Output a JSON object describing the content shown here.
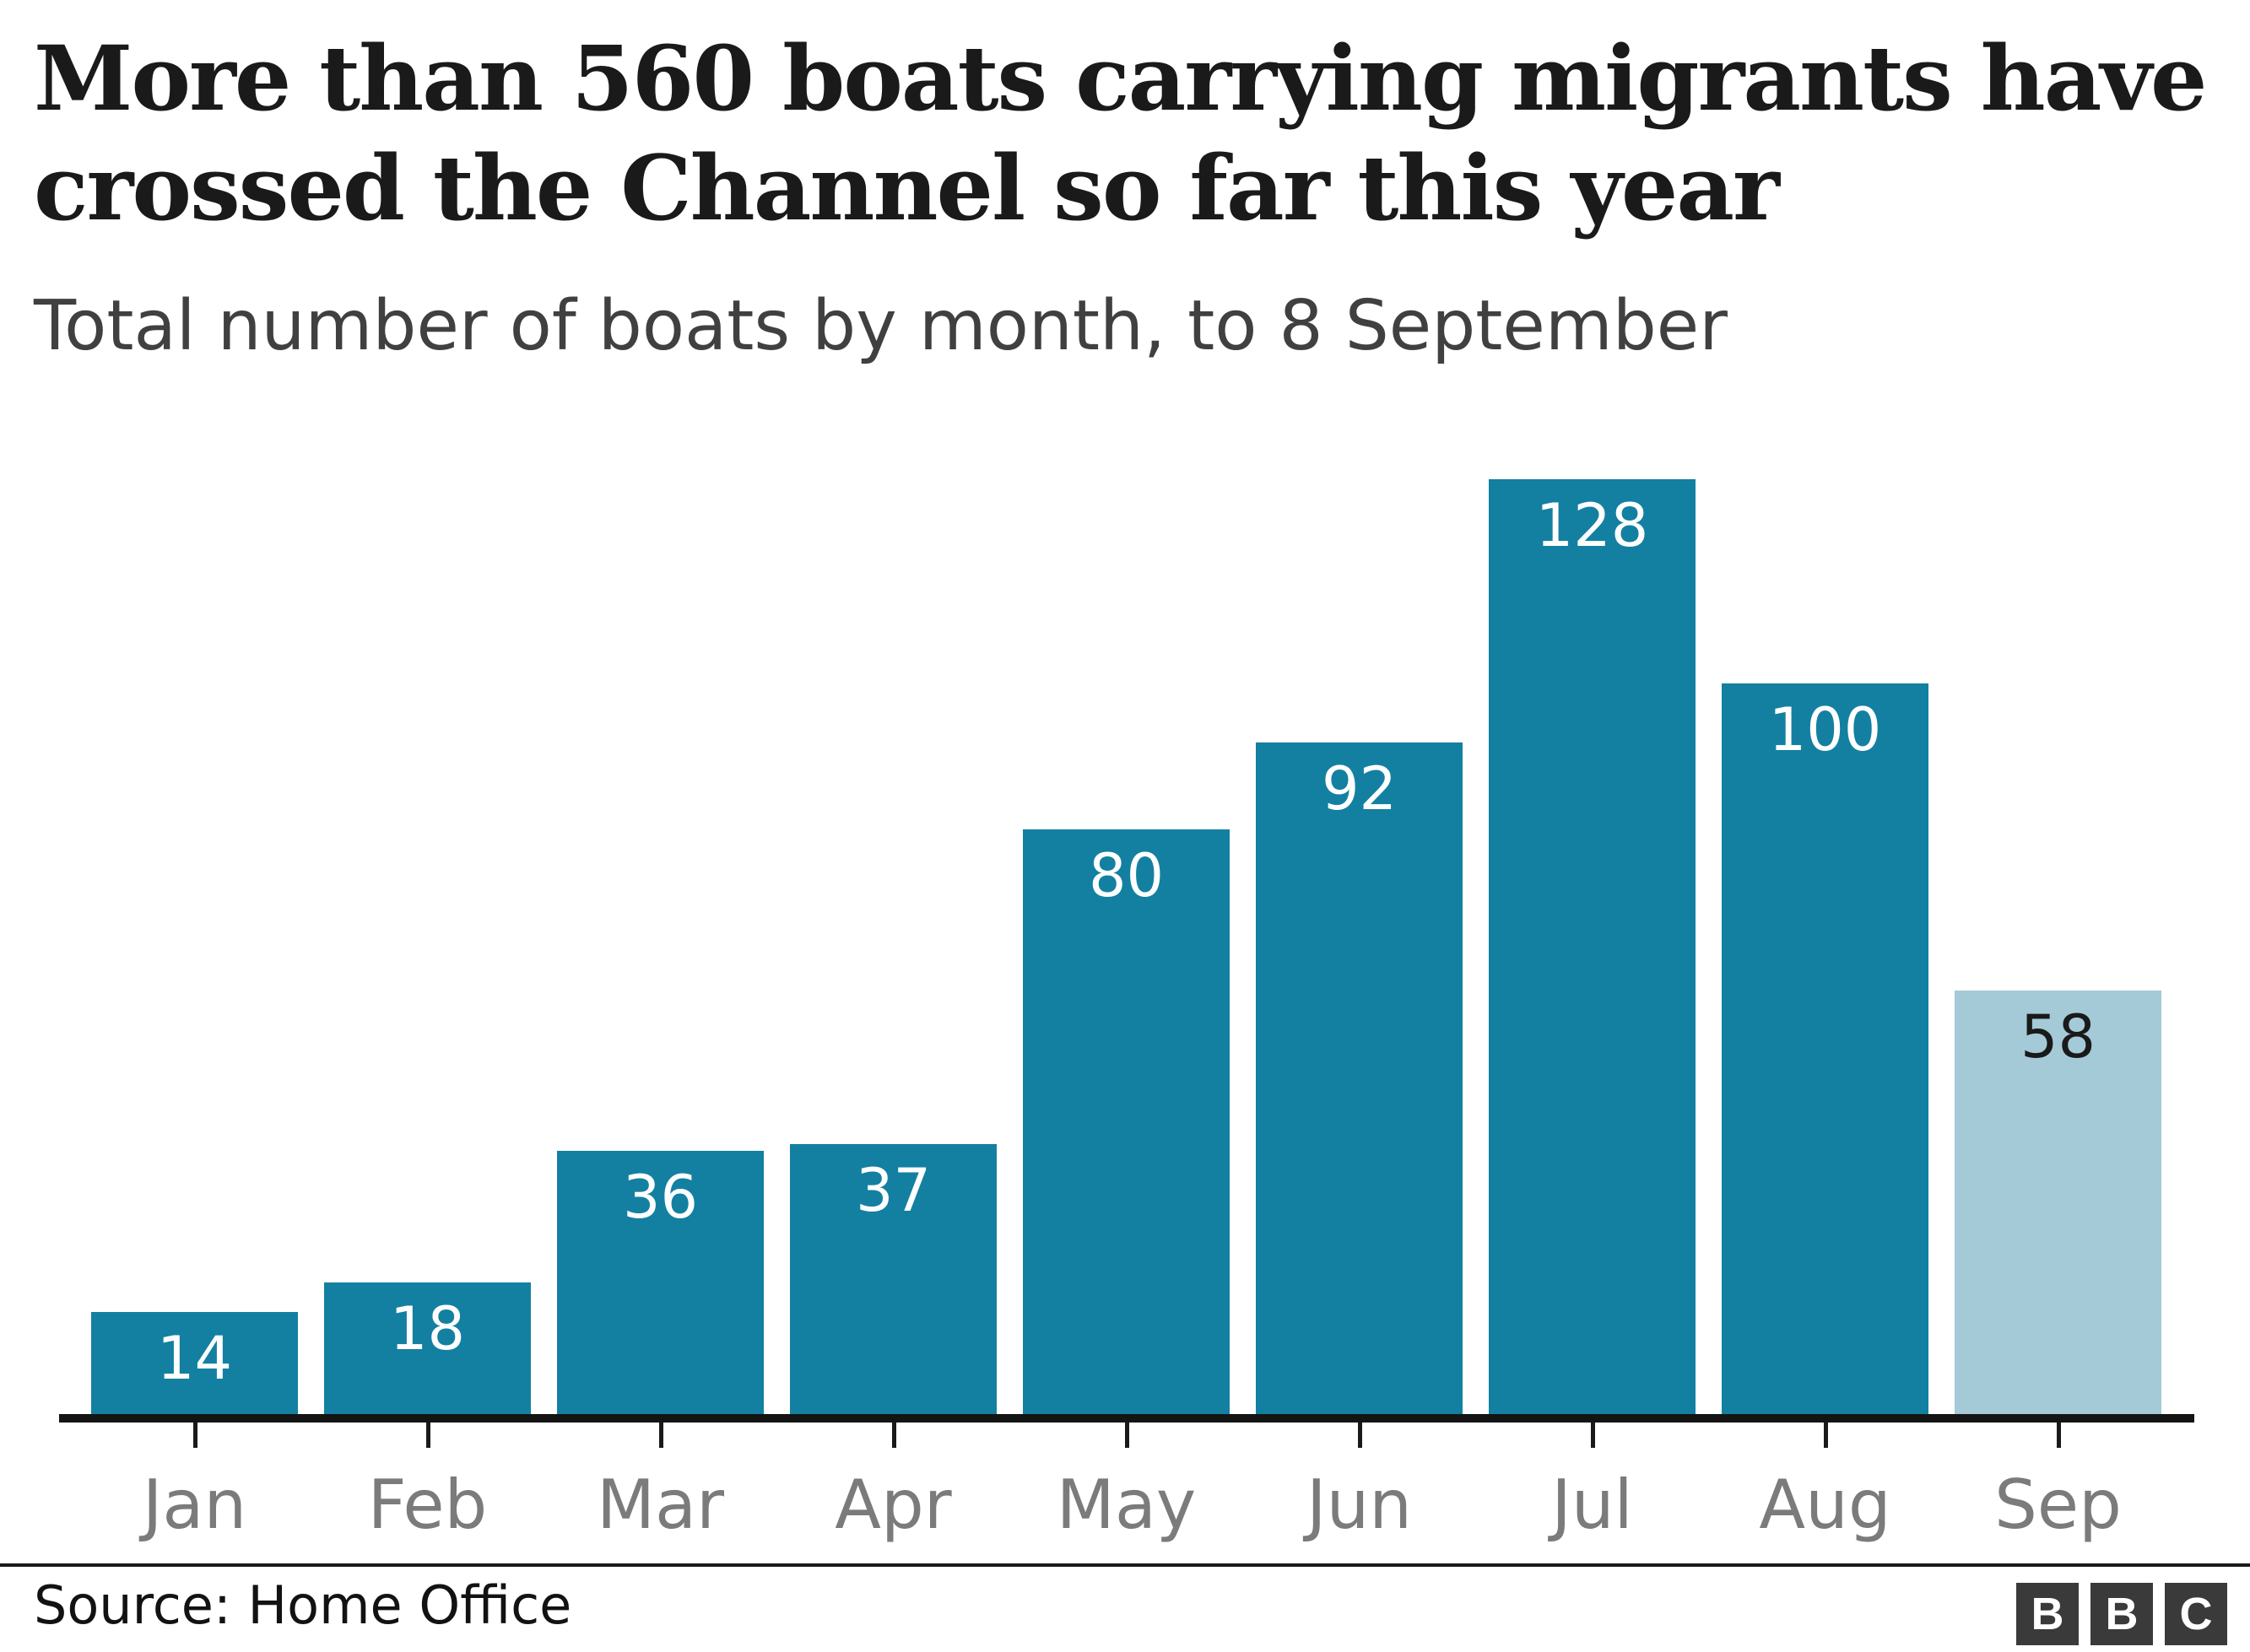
{
  "header": {
    "title_lines": [
      "More than 560 boats carrying migrants have",
      "crossed the Channel so far this year"
    ],
    "subtitle": "Total number of boats by month, to 8 September"
  },
  "chart_data": {
    "type": "bar",
    "title": "More than 560 boats carrying migrants have crossed the Channel so far this year",
    "subtitle": "Total number of boats by month, to 8 September",
    "categories": [
      "Jan",
      "Feb",
      "Mar",
      "Apr",
      "May",
      "Jun",
      "Jul",
      "Aug",
      "Sep"
    ],
    "values": [
      14,
      18,
      36,
      37,
      80,
      92,
      128,
      100,
      58
    ],
    "xlabel": "",
    "ylabel": "",
    "ylim": [
      0,
      128
    ],
    "grid": false,
    "legend": "none",
    "value_labels_shown": true,
    "bar_color": "#1380A1",
    "partial_bar_color": "#A4CAD8",
    "partial_index": 8,
    "value_label_color": "#FFFFFF",
    "partial_value_label_color": "#1A1A1A",
    "axis_color": "#141414",
    "tick_label_color": "#7B7B7B"
  },
  "footer": {
    "source": "Source: Home Office",
    "logo_letters": [
      "B",
      "B",
      "C"
    ],
    "logo_bg": "#3A3A3A"
  }
}
